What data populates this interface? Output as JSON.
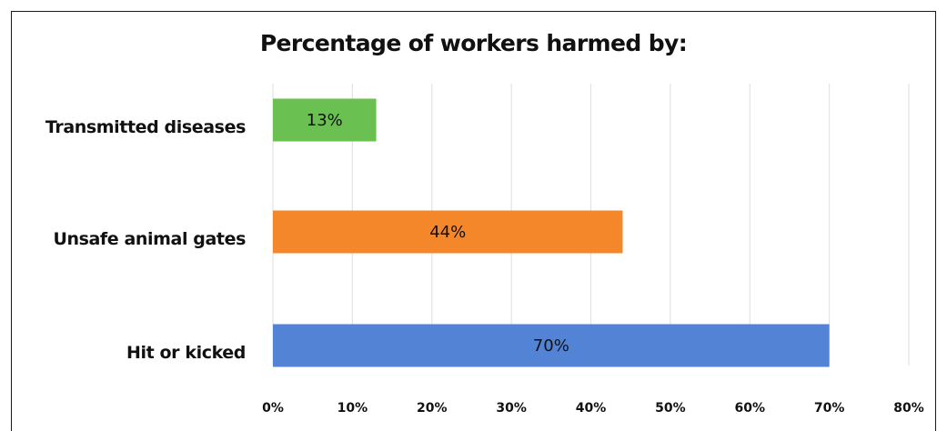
{
  "chart_data": {
    "type": "bar",
    "orientation": "horizontal",
    "title": "Percentage of workers harmed by:",
    "categories": [
      "Transmitted diseases",
      "Unsafe animal gates",
      "Hit or kicked"
    ],
    "values": [
      13,
      44,
      70
    ],
    "data_labels": [
      "13%",
      "44%",
      "70%"
    ],
    "colors": [
      "#6ac152",
      "#f5872b",
      "#5283d4"
    ],
    "xlabel": "",
    "ylabel": "",
    "xlim": [
      0,
      80
    ],
    "x_ticks": [
      0,
      10,
      20,
      30,
      40,
      50,
      60,
      70,
      80
    ],
    "x_tick_labels": [
      "0%",
      "10%",
      "20%",
      "30%",
      "40%",
      "50%",
      "60%",
      "70%",
      "80%"
    ],
    "grid": true,
    "grid_color": "#e3e3e3",
    "legend": false
  }
}
